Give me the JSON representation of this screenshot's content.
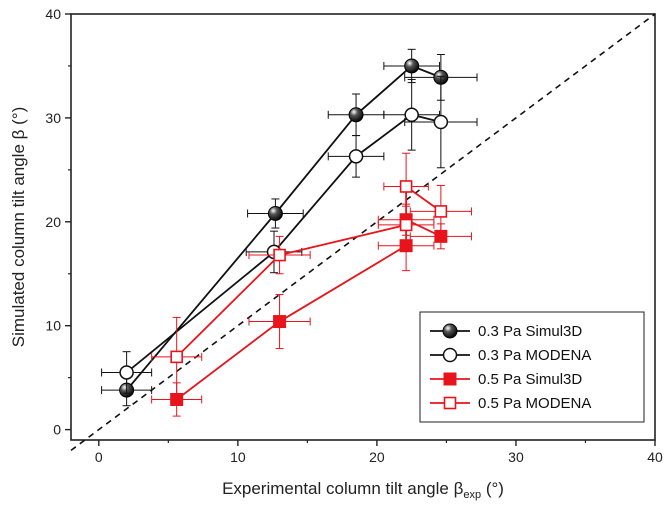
{
  "chart_data": {
    "type": "scatter",
    "xlabel": {
      "main": "Experimental column tilt angle β",
      "sub": "exp",
      "unit": " (°)"
    },
    "ylabel": "Simulated column tilt angle β (°)",
    "xlim": [
      -2,
      40
    ],
    "ylim": [
      -1,
      40
    ],
    "x_ticks": [
      0,
      10,
      20,
      30,
      40
    ],
    "y_ticks": [
      0,
      10,
      20,
      30,
      40
    ],
    "grid": false,
    "reference_line": {
      "style": "dashed",
      "from": [
        -2,
        -2
      ],
      "to": [
        40,
        40
      ]
    },
    "legend_position": "bottom-right",
    "series": [
      {
        "name": "0.3 Pa Simul3D",
        "color": "#111111",
        "marker": "filled-circle",
        "points": [
          {
            "x": 2.0,
            "y": 3.8,
            "xerr": 1.8,
            "yerr": 1.5
          },
          {
            "x": 12.7,
            "y": 20.8,
            "xerr": 2.0,
            "yerr": 1.4
          },
          {
            "x": 18.5,
            "y": 30.3,
            "xerr": 2.0,
            "yerr": 2.0
          },
          {
            "x": 22.5,
            "y": 35.0,
            "xerr": 2.0,
            "yerr": 1.6
          },
          {
            "x": 24.6,
            "y": 33.9,
            "xerr": 2.6,
            "yerr": 2.2
          }
        ]
      },
      {
        "name": "0.3 Pa MODENA",
        "color": "#111111",
        "marker": "open-circle",
        "points": [
          {
            "x": 2.0,
            "y": 5.5,
            "xerr": 1.8,
            "yerr": 2.0
          },
          {
            "x": 12.6,
            "y": 17.1,
            "xerr": 2.0,
            "yerr": 2.0
          },
          {
            "x": 18.5,
            "y": 26.3,
            "xerr": 2.0,
            "yerr": 2.0
          },
          {
            "x": 22.5,
            "y": 30.3,
            "xerr": 2.0,
            "yerr": 3.4
          },
          {
            "x": 24.6,
            "y": 29.6,
            "xerr": 2.6,
            "yerr": 4.4
          }
        ]
      },
      {
        "name": "0.5 Pa Simul3D",
        "color": "#e8141c",
        "marker": "filled-square",
        "points": [
          {
            "x": 5.6,
            "y": 2.9,
            "xerr": 1.8,
            "yerr": 1.6
          },
          {
            "x": 13.0,
            "y": 10.4,
            "xerr": 2.2,
            "yerr": 2.6
          },
          {
            "x": 22.1,
            "y": 17.7,
            "xerr": 2.0,
            "yerr": 2.4
          },
          {
            "x": 22.1,
            "y": 20.2,
            "xerr": 2.0,
            "yerr": 1.5
          },
          {
            "x": 24.6,
            "y": 18.6,
            "xerr": 2.2,
            "yerr": 1.2
          }
        ]
      },
      {
        "name": "0.5 Pa MODENA",
        "color": "#e8141c",
        "marker": "open-square",
        "points": [
          {
            "x": 5.6,
            "y": 7.0,
            "xerr": 1.8,
            "yerr": 3.8
          },
          {
            "x": 13.0,
            "y": 16.8,
            "xerr": 2.2,
            "yerr": 1.8
          },
          {
            "x": 22.1,
            "y": 19.7,
            "xerr": 2.0,
            "yerr": 1.8
          },
          {
            "x": 22.1,
            "y": 23.4,
            "xerr": 1.6,
            "yerr": 3.2
          },
          {
            "x": 24.6,
            "y": 21.0,
            "xerr": 2.2,
            "yerr": 2.5
          }
        ]
      }
    ]
  }
}
